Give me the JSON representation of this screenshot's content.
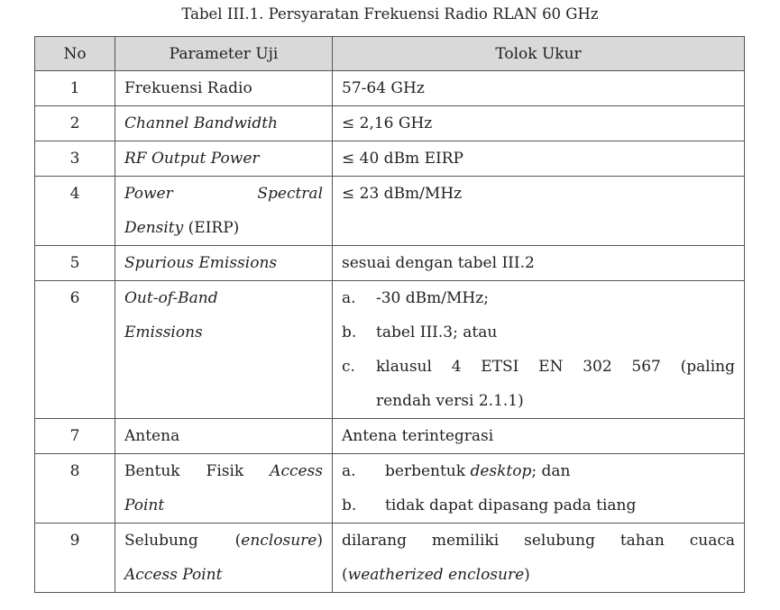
{
  "title": "Tabel III.1. Persyaratan Frekuensi Radio RLAN 60 GHz",
  "header_bg": "#d9d9d9",
  "columns": [
    "No",
    "Parameter Uji",
    "Tolok Ukur"
  ],
  "rows": [
    {
      "no": "1",
      "param": [
        {
          "s": [
            {
              "t": "Frekuensi Radio"
            }
          ]
        }
      ],
      "value": [
        {
          "s": [
            {
              "t": "57-64 GHz"
            }
          ]
        }
      ]
    },
    {
      "no": "2",
      "param": [
        {
          "s": [
            {
              "t": "Channel Bandwidth",
              "i": true
            }
          ]
        }
      ],
      "value": [
        {
          "s": [
            {
              "t": "≤ 2,16 GHz"
            }
          ]
        }
      ]
    },
    {
      "no": "3",
      "param": [
        {
          "s": [
            {
              "t": "RF Output Power",
              "i": true
            }
          ]
        }
      ],
      "value": [
        {
          "s": [
            {
              "t": "≤ 40 dBm EIRP"
            }
          ]
        }
      ]
    },
    {
      "no": "4",
      "param": [
        {
          "j": true,
          "s": [
            {
              "t": "Power",
              "i": true
            },
            {
              "t": " "
            },
            {
              "t": "Spectral",
              "i": true
            }
          ]
        },
        {
          "s": [
            {
              "t": "Density",
              "i": true
            },
            {
              "t": " (EIRP)"
            }
          ]
        }
      ],
      "value": [
        {
          "s": [
            {
              "t": "≤ 23 dBm/MHz"
            }
          ]
        },
        {
          "s": []
        }
      ]
    },
    {
      "no": "5",
      "param": [
        {
          "s": [
            {
              "t": "Spurious Emissions",
              "i": true
            }
          ]
        }
      ],
      "value": [
        {
          "s": [
            {
              "t": "sesuai dengan tabel III.2"
            }
          ]
        }
      ]
    },
    {
      "no": "6",
      "param": [
        {
          "s": [
            {
              "t": "Out-of-Band",
              "i": true
            }
          ]
        },
        {
          "s": [
            {
              "t": "Emissions",
              "i": true
            }
          ]
        },
        {
          "s": []
        },
        {
          "s": []
        }
      ],
      "value": [
        {
          "m": "a.",
          "s": [
            {
              "t": "-30 dBm/MHz;"
            }
          ]
        },
        {
          "m": "b.",
          "s": [
            {
              "t": "tabel III.3; atau"
            }
          ]
        },
        {
          "m": "c.",
          "j": true,
          "s": [
            {
              "t": "klausul 4 ETSI EN 302 567 (paling"
            }
          ]
        },
        {
          "ind": true,
          "s": [
            {
              "t": "rendah versi 2.1.1)"
            }
          ]
        }
      ]
    },
    {
      "no": "7",
      "param": [
        {
          "s": [
            {
              "t": "Antena"
            }
          ]
        }
      ],
      "value": [
        {
          "s": [
            {
              "t": "Antena terintegrasi"
            }
          ]
        }
      ]
    },
    {
      "no": "8",
      "param": [
        {
          "j": true,
          "s": [
            {
              "t": "Bentuk Fisik "
            },
            {
              "t": "Access",
              "i": true
            }
          ]
        },
        {
          "s": [
            {
              "t": "Point",
              "i": true
            }
          ]
        }
      ],
      "value": [
        {
          "m": "a.",
          "w": true,
          "s": [
            {
              "t": "berbentuk "
            },
            {
              "t": "desktop",
              "i": true
            },
            {
              "t": "; dan"
            }
          ]
        },
        {
          "m": "b.",
          "w": true,
          "s": [
            {
              "t": "tidak dapat dipasang pada tiang"
            }
          ]
        }
      ]
    },
    {
      "no": "9",
      "param": [
        {
          "j": true,
          "s": [
            {
              "t": "Selubung ("
            },
            {
              "t": "enclosure",
              "i": true
            },
            {
              "t": ")"
            }
          ]
        },
        {
          "s": [
            {
              "t": "Access Point",
              "i": true
            }
          ]
        }
      ],
      "value": [
        {
          "j": true,
          "s": [
            {
              "t": "dilarang memiliki selubung tahan cuaca"
            }
          ]
        },
        {
          "s": [
            {
              "t": "("
            },
            {
              "t": "weatherized enclosure",
              "i": true
            },
            {
              "t": ")"
            }
          ]
        }
      ]
    }
  ]
}
